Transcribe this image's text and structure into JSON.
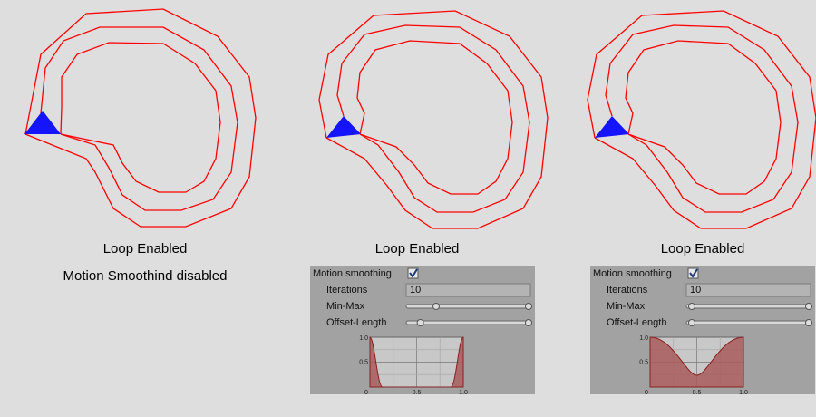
{
  "panels": [
    {
      "caption": "Loop Enabled",
      "note": "Motion Smoothind disabled"
    },
    {
      "caption": "Loop Enabled",
      "inspector": {
        "toggle_label": "Motion smoothing",
        "fields": [
          {
            "label": "Iterations",
            "value": "10"
          },
          {
            "label": "Min-Max"
          },
          {
            "label": "Offset-Length"
          }
        ],
        "curve": {
          "y_labels": [
            "1.0",
            "0.5"
          ],
          "x_labels": [
            "0",
            "0.5",
            "1.0"
          ]
        }
      }
    },
    {
      "caption": "Loop Enabled",
      "inspector": {
        "toggle_label": "Motion smoothing",
        "fields": [
          {
            "label": "Iterations",
            "value": "10"
          },
          {
            "label": "Min-Max"
          },
          {
            "label": "Offset-Length"
          }
        ],
        "curve": {
          "y_labels": [
            "1.0",
            "0.5"
          ],
          "x_labels": [
            "0",
            "0.5",
            "1.0"
          ]
        }
      }
    }
  ]
}
